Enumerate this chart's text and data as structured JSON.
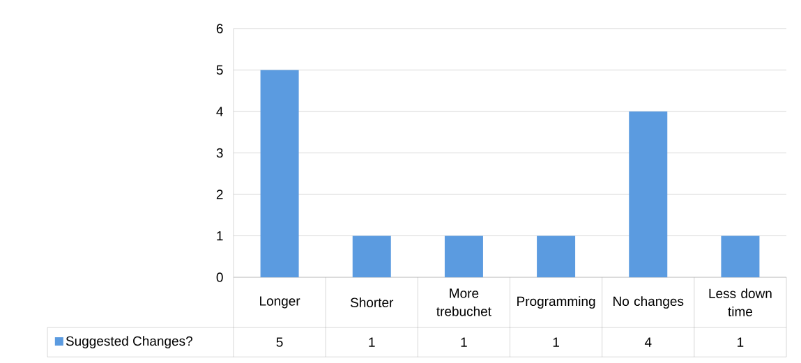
{
  "chart_data": {
    "type": "bar",
    "categories": [
      "Longer",
      "Shorter",
      "More trebuchet",
      "Programming",
      "No changes",
      "Less down time"
    ],
    "series": [
      {
        "name": "Suggested Changes?",
        "color": "#5b9be0",
        "values": [
          5,
          1,
          1,
          1,
          4,
          1
        ]
      }
    ],
    "ylim": [
      0,
      6
    ],
    "yticks": [
      0,
      1,
      2,
      3,
      4,
      5,
      6
    ],
    "grid": "y",
    "legend": "bottom",
    "data_labels": true
  }
}
